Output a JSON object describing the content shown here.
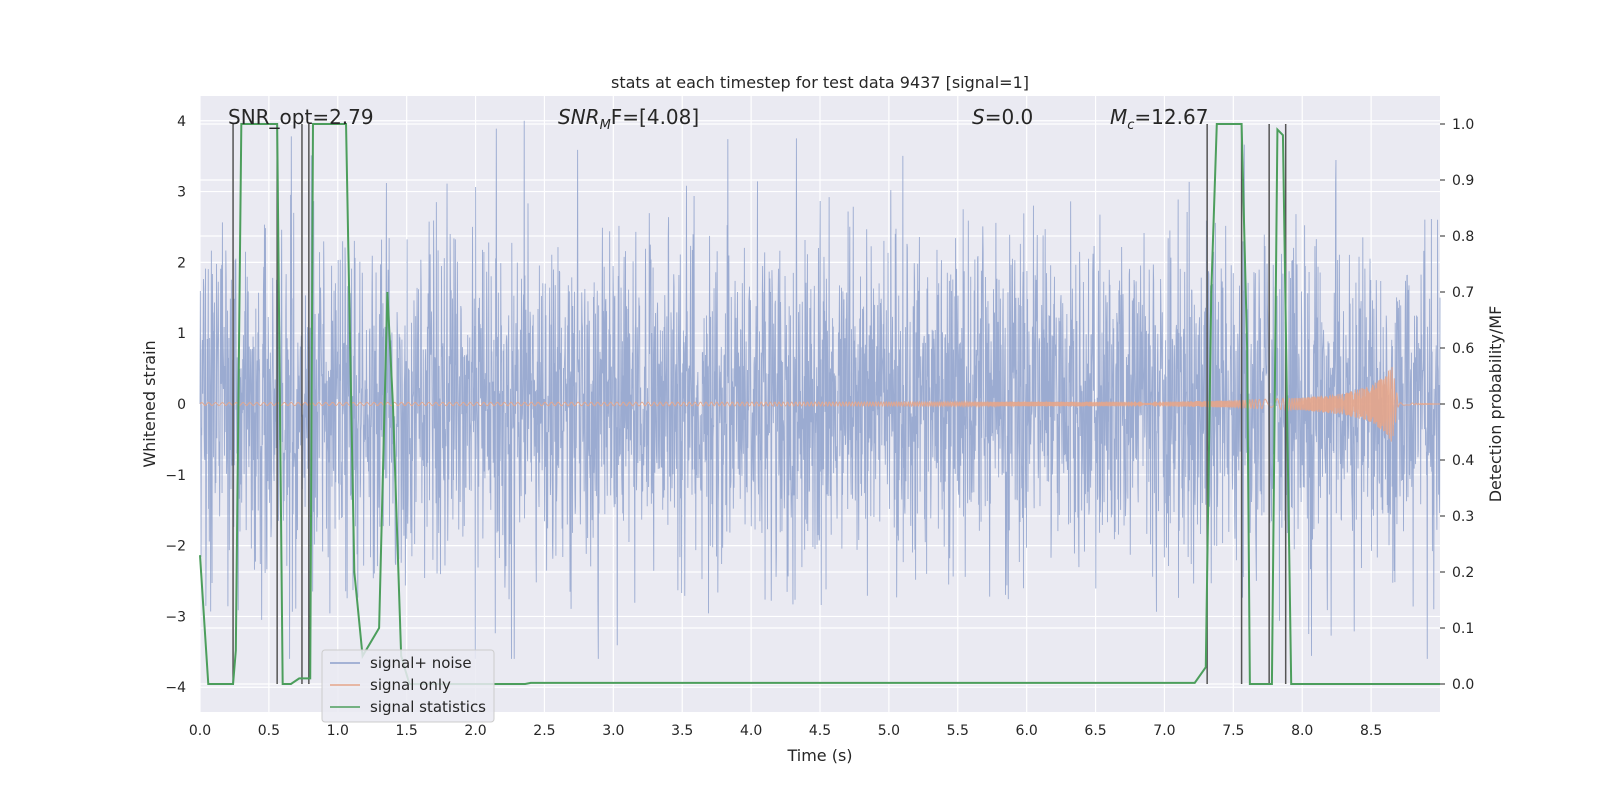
{
  "chart_data": {
    "type": "line",
    "title": "stats at each timestep for test data 9437 [signal=1]",
    "xlabel": "Time (s)",
    "ylabel_left": "Whitened strain",
    "ylabel_right": "Detection probability/MF",
    "xlim": [
      0.0,
      9.0
    ],
    "ylim_left": [
      -4.35,
      4.35
    ],
    "ylim_right": [
      -0.05,
      1.05
    ],
    "xticks": [
      0.0,
      0.5,
      1.0,
      1.5,
      2.0,
      2.5,
      3.0,
      3.5,
      4.0,
      4.5,
      5.0,
      5.5,
      6.0,
      6.5,
      7.0,
      7.5,
      8.0,
      8.5
    ],
    "xtick_labels": [
      "0.0",
      "0.5",
      "1.0",
      "1.5",
      "2.0",
      "2.5",
      "3.0",
      "3.5",
      "4.0",
      "4.5",
      "5.0",
      "5.5",
      "6.0",
      "6.5",
      "7.0",
      "7.5",
      "8.0",
      "8.5"
    ],
    "yticks_left": [
      4,
      3,
      2,
      1,
      0,
      -1,
      -2,
      -3,
      -4
    ],
    "ytick_labels_left": [
      "4",
      "3",
      "2",
      "1",
      "0",
      "−1",
      "−2",
      "−3",
      "−4"
    ],
    "yticks_right": [
      1.0,
      0.9,
      0.8,
      0.7,
      0.6,
      0.5,
      0.4,
      0.3,
      0.2,
      0.1,
      0.0
    ],
    "ytick_labels_right": [
      "1.0",
      "0.9",
      "0.8",
      "0.7",
      "0.6",
      "0.5",
      "0.4",
      "0.3",
      "0.2",
      "0.1",
      "0.0"
    ],
    "annotations": [
      {
        "id": "snr-opt",
        "text": "SNR_opt=2.79",
        "x": 0.2
      },
      {
        "id": "snr-mf",
        "text_base": "SNR",
        "text_sub": "M",
        "text_rest": "F=[4.08]",
        "x": 2.6
      },
      {
        "id": "s-stat",
        "text_base": "S",
        "text_rest": "=0.0",
        "x": 5.6
      },
      {
        "id": "mc",
        "text_base": "M",
        "text_sub": "c",
        "text_rest": "=12.67",
        "x": 6.6
      }
    ],
    "legend": {
      "position": "lower-left",
      "entries": [
        {
          "label": "signal+ noise",
          "color": "#8da0cb"
        },
        {
          "label": "signal only",
          "color": "#e5a58a"
        },
        {
          "label": "signal statistics",
          "color": "#4c9e5c"
        }
      ]
    },
    "series": [
      {
        "name": "signal statistics",
        "axis": "right",
        "color": "#4c9e5c",
        "x": [
          0.0,
          0.06,
          0.24,
          0.26,
          0.3,
          0.56,
          0.6,
          0.62,
          0.66,
          0.72,
          0.8,
          0.82,
          0.86,
          1.06,
          1.12,
          1.18,
          1.3,
          1.36,
          1.4,
          1.46,
          1.52,
          2.36,
          2.4,
          7.22,
          7.3,
          7.34,
          7.38,
          7.56,
          7.6,
          7.62,
          7.68,
          7.78,
          7.82,
          7.86,
          7.92,
          8.5,
          9.0
        ],
        "y": [
          0.23,
          0.0,
          0.0,
          0.06,
          1.0,
          1.0,
          0.0,
          0.0,
          0.0,
          0.01,
          0.01,
          1.0,
          1.0,
          1.0,
          0.2,
          0.05,
          0.1,
          0.7,
          0.5,
          0.05,
          0.0,
          0.0,
          0.002,
          0.002,
          0.03,
          0.7,
          1.0,
          1.0,
          0.6,
          0.0,
          0.0,
          0.0,
          0.99,
          0.98,
          0.0,
          0.0,
          0.0
        ]
      },
      {
        "name": "threshold markers",
        "axis": "right",
        "color": "#555555",
        "x": [
          0.24,
          0.56,
          0.74,
          0.79,
          7.31,
          7.56,
          7.76,
          7.88
        ],
        "y_low": [
          0.0,
          0.0,
          0.0,
          0.0,
          0.0,
          0.0,
          0.0,
          0.0
        ],
        "y_high": [
          1.0,
          1.0,
          1.0,
          1.0,
          1.0,
          1.0,
          1.0,
          1.0
        ]
      },
      {
        "name": "signal only",
        "axis": "left",
        "color": "#e5a58a",
        "description_values": "chirp oscillation: amplitude ~0.03 up to t=7.0, growing to ~0.55 at merger t=8.65, then ~0",
        "envelope_x": [
          0.0,
          5.5,
          7.0,
          7.5,
          8.0,
          8.3,
          8.5,
          8.6,
          8.65,
          8.7,
          9.0
        ],
        "envelope_amp": [
          0.02,
          0.03,
          0.035,
          0.05,
          0.09,
          0.15,
          0.26,
          0.4,
          0.56,
          0.02,
          0.0
        ]
      },
      {
        "name": "signal+ noise",
        "axis": "left",
        "color": "#8da0cb",
        "description_values": "dense white noise, sigma ~1.2, peaks roughly between -3.6 and +4.0",
        "sigma": 1.2,
        "max": 4.0,
        "min": -3.6
      }
    ]
  }
}
